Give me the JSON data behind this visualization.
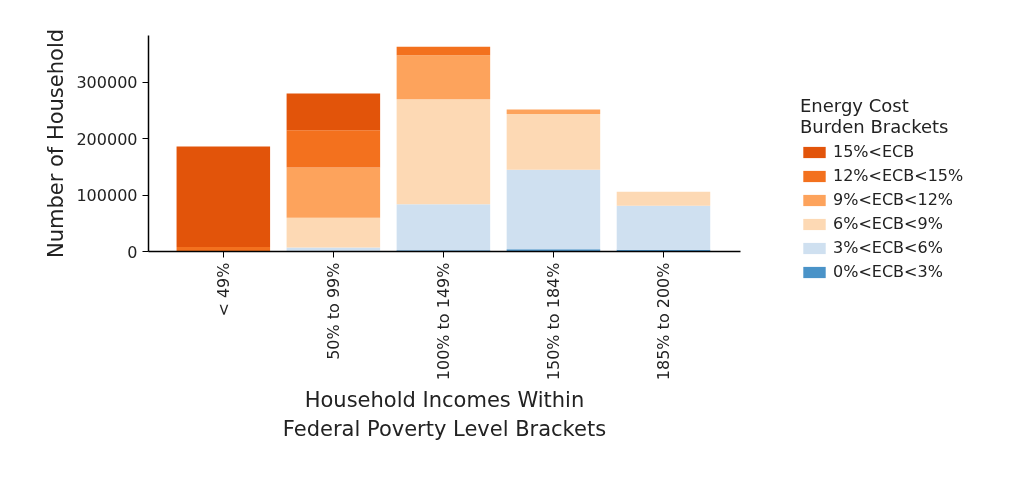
{
  "chart_data": {
    "type": "bar",
    "stacked": true,
    "xlabel": "Household Incomes Within Federal Poverty Level Brackets",
    "ylabel": "Number of Household",
    "legend_title": "Energy Cost Burden Brackets",
    "legend": "right",
    "grid": false,
    "categories": [
      "< 49%",
      "50% to 99%",
      "100% to 149%",
      "150% to 184%",
      "185% to 200%"
    ],
    "ylim": [
      0,
      383000
    ],
    "yticks": [
      0,
      100000,
      200000,
      300000
    ],
    "series": [
      {
        "name": "0%<ECB<3%",
        "color": "#4a93c8",
        "values": [
          0,
          0,
          2000,
          4000,
          3000
        ]
      },
      {
        "name": "3%<ECB<6%",
        "color": "#cfe0f0",
        "values": [
          0,
          7000,
          82000,
          141000,
          78000
        ]
      },
      {
        "name": "6%<ECB<9%",
        "color": "#fdd9b4",
        "values": [
          0,
          53000,
          186000,
          99000,
          25000
        ]
      },
      {
        "name": "9%<ECB<12%",
        "color": "#fda35c",
        "values": [
          0,
          89000,
          78000,
          8000,
          0
        ]
      },
      {
        "name": "12%<ECB<15%",
        "color": "#f3711e",
        "values": [
          8000,
          66000,
          15000,
          0,
          0
        ]
      },
      {
        "name": "15%<ECB",
        "color": "#e2540a",
        "values": [
          178000,
          65000,
          0,
          0,
          0
        ]
      }
    ]
  }
}
